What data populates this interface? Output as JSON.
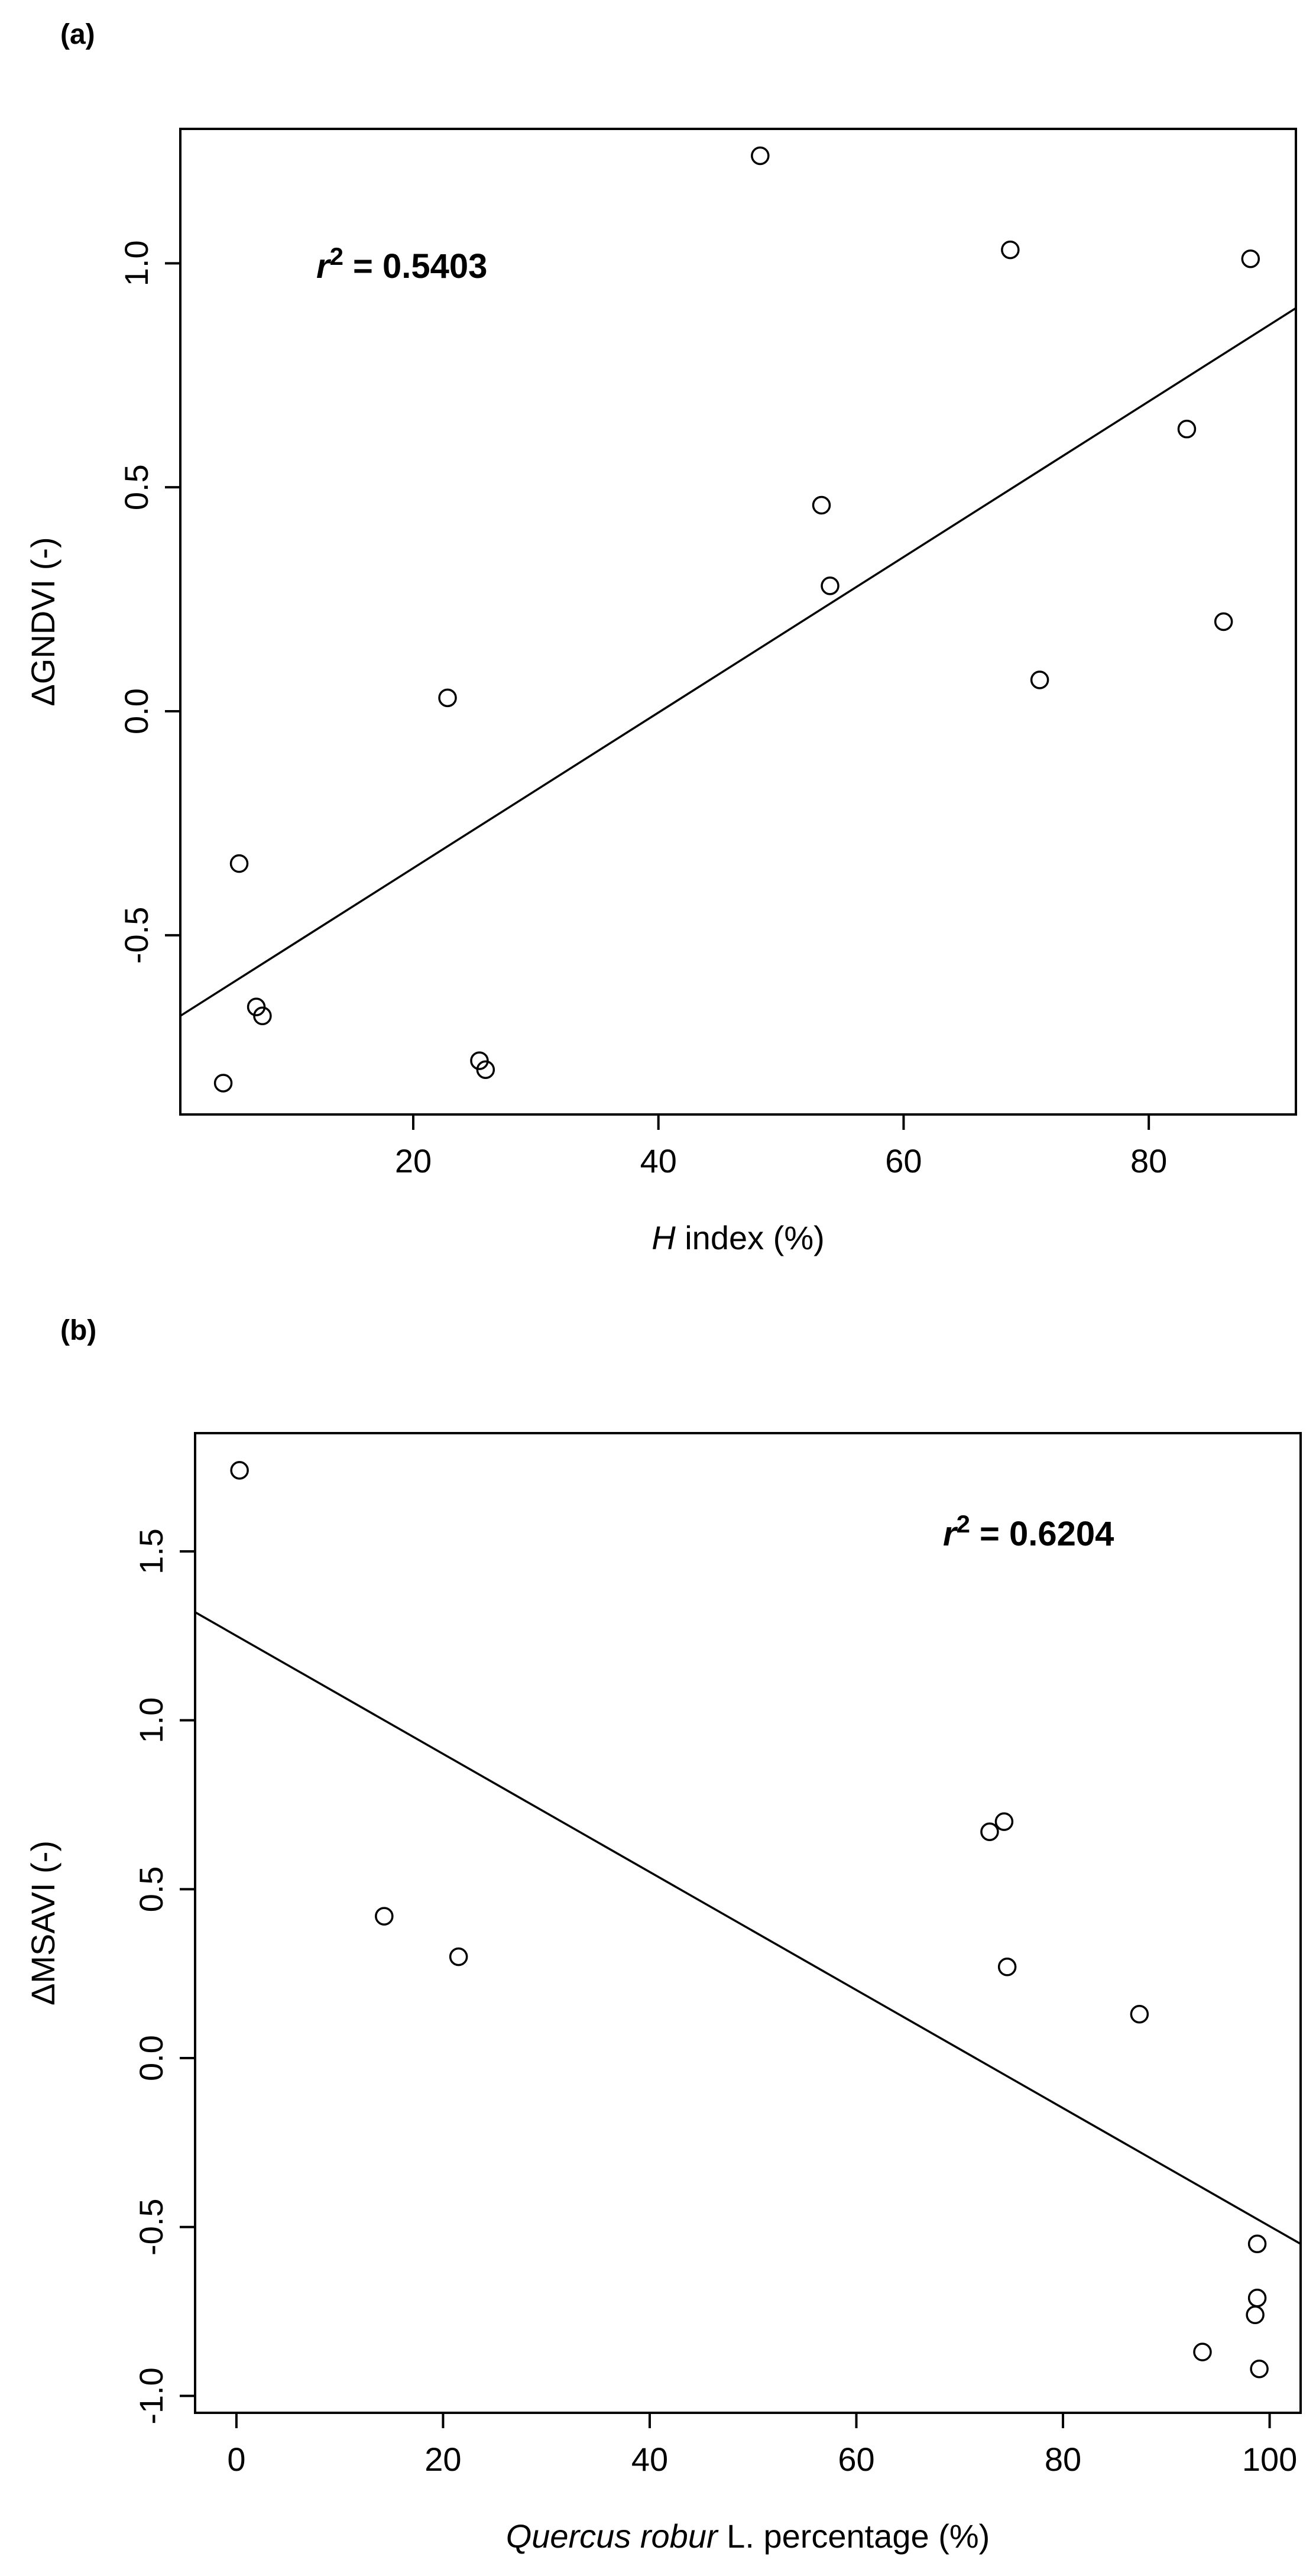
{
  "chart_data": [
    {
      "type": "scatter",
      "panel_label": "(a)",
      "title": "",
      "xlabel_italic": "H",
      "xlabel_rest": " index (%)",
      "ylabel": "ΔGNDVI (-)",
      "xlim": [
        1,
        92
      ],
      "ylim": [
        -0.9,
        1.3
      ],
      "xticks": [
        20,
        40,
        60,
        80
      ],
      "yticks": [
        -0.5,
        0.0,
        0.5,
        1.0
      ],
      "ytick_labels": [
        "-0.5",
        "0.0",
        "0.5",
        "1.0"
      ],
      "annotation": {
        "prefix": "r",
        "sup": "2",
        "suffix": " = 0.5403"
      },
      "points": [
        {
          "x": 4.5,
          "y": -0.83
        },
        {
          "x": 5.8,
          "y": -0.34
        },
        {
          "x": 7.2,
          "y": -0.66
        },
        {
          "x": 7.7,
          "y": -0.68
        },
        {
          "x": 22.8,
          "y": 0.03
        },
        {
          "x": 25.4,
          "y": -0.78
        },
        {
          "x": 25.9,
          "y": -0.8
        },
        {
          "x": 48.3,
          "y": 1.24
        },
        {
          "x": 53.3,
          "y": 0.46
        },
        {
          "x": 54.0,
          "y": 0.28
        },
        {
          "x": 68.7,
          "y": 1.03
        },
        {
          "x": 71.1,
          "y": 0.07
        },
        {
          "x": 83.1,
          "y": 0.63
        },
        {
          "x": 86.1,
          "y": 0.2
        },
        {
          "x": 88.3,
          "y": 1.01
        }
      ],
      "fit_line": {
        "x": [
          1,
          92
        ],
        "y": [
          -0.68,
          0.9
        ]
      }
    },
    {
      "type": "scatter",
      "panel_label": "(b)",
      "title": "",
      "xlabel_italic": "Quercus robur",
      "xlabel_rest": " L. percentage (%)",
      "ylabel": "ΔMSAVI (-)",
      "xlim": [
        -4,
        103
      ],
      "ylim": [
        -1.05,
        1.85
      ],
      "xticks": [
        0,
        20,
        40,
        60,
        80,
        100
      ],
      "yticks": [
        -1.0,
        -0.5,
        0.0,
        0.5,
        1.0,
        1.5
      ],
      "ytick_labels": [
        "-1.0",
        "-0.5",
        "0.0",
        "0.5",
        "1.0",
        "1.5"
      ],
      "annotation": {
        "prefix": "r",
        "sup": "2",
        "suffix": " = 0.6204"
      },
      "points": [
        {
          "x": 0.3,
          "y": 1.74
        },
        {
          "x": 14.3,
          "y": 0.42
        },
        {
          "x": 21.5,
          "y": 0.3
        },
        {
          "x": 72.9,
          "y": 0.67
        },
        {
          "x": 74.3,
          "y": 0.7
        },
        {
          "x": 74.6,
          "y": 0.27
        },
        {
          "x": 87.4,
          "y": 0.13
        },
        {
          "x": 93.5,
          "y": -0.87
        },
        {
          "x": 98.6,
          "y": -0.76
        },
        {
          "x": 98.8,
          "y": -0.71
        },
        {
          "x": 98.8,
          "y": -0.55
        },
        {
          "x": 99.0,
          "y": -0.92
        }
      ],
      "fit_line": {
        "x": [
          -4,
          103
        ],
        "y": [
          1.32,
          -0.55
        ]
      }
    }
  ]
}
